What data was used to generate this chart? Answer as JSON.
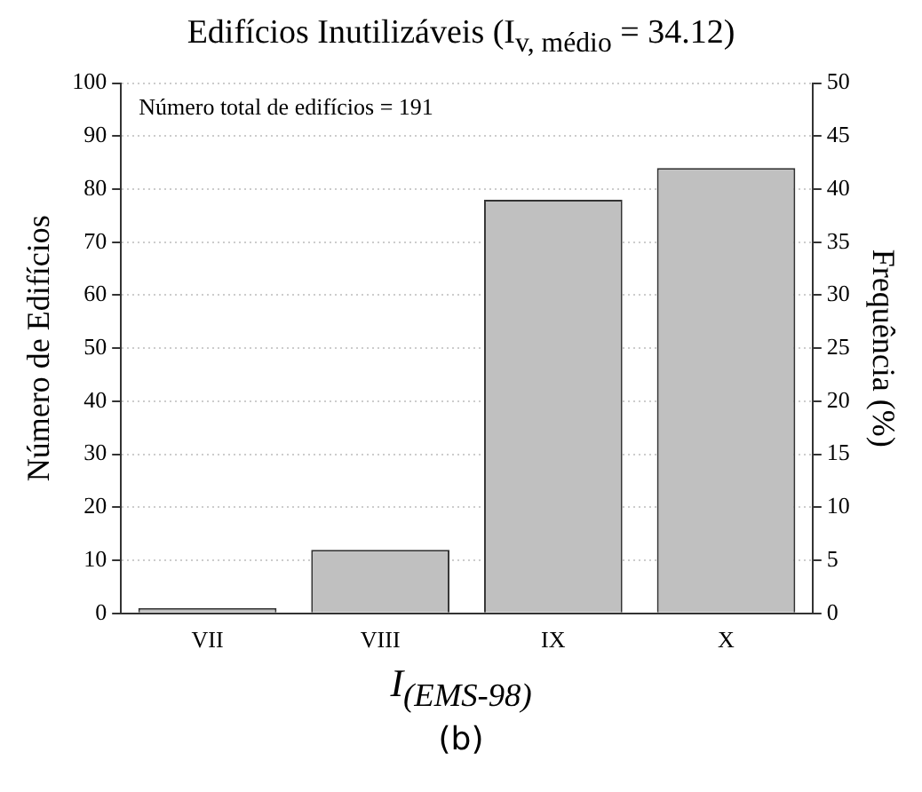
{
  "chart_data": {
    "type": "bar",
    "title": "Edifícios Inutilizáveis (I$_{v, médio}$ = 34.12)",
    "xlabel": "I$_{(EMS-98)}$",
    "ylabel": "Número de Edifícios",
    "y2label": "Frequência (%)",
    "categories": [
      "VII",
      "VIII",
      "IX",
      "X"
    ],
    "series": [
      {
        "color": "#c0c0c0",
        "values": [
          1,
          12,
          78,
          84
        ]
      }
    ],
    "ylim": [
      0,
      100
    ],
    "yticks": [
      0,
      10,
      20,
      30,
      40,
      50,
      60,
      70,
      80,
      90,
      100
    ],
    "y2lim": [
      0,
      50
    ],
    "y2ticks": [
      0,
      5,
      10,
      15,
      20,
      25,
      30,
      35,
      40,
      45,
      50
    ],
    "grid": "y",
    "legend": false,
    "annotations": [
      "Número total de edifícios = 191",
      "(b)"
    ]
  }
}
